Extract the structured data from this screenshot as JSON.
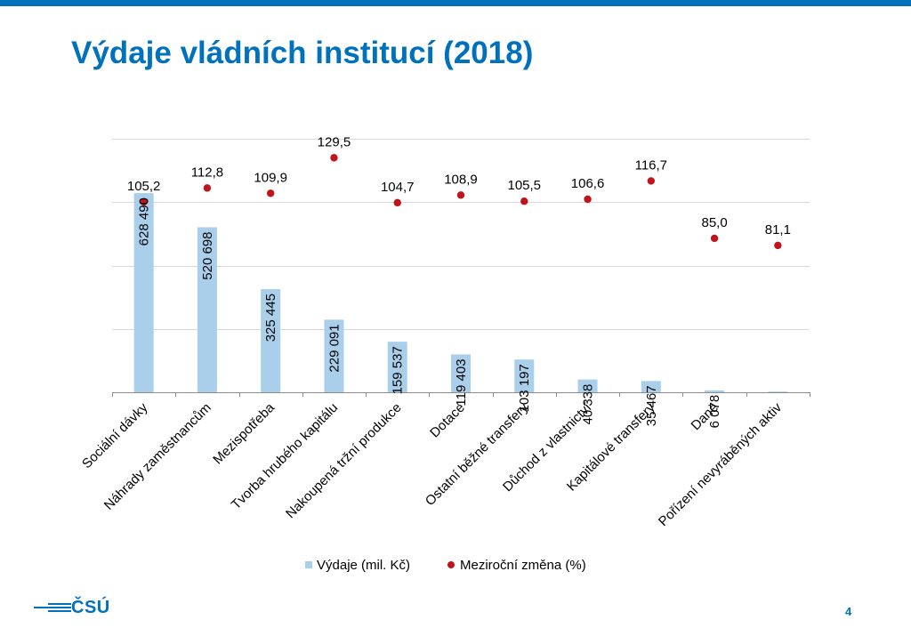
{
  "page": {
    "number": "4"
  },
  "logo": {
    "text": "ČSÚ"
  },
  "colors": {
    "accent": "#0071bc",
    "bar": "#a9cfeb",
    "point": "#c0141a",
    "grid": "#d9d9d9"
  },
  "chart_data": {
    "type": "bar",
    "title": "Výdaje vládních institucí (2018)",
    "categories": [
      "Sociální dávky",
      "Náhrady zaměstnancům",
      "Mezispotřeba",
      "Tvorba hrubého kapitálu",
      "Nakoupená tržní produkce",
      "Dotace",
      "Ostatní běžné transfery",
      "Důchod z vlastnictví",
      "Kapitálové transfery",
      "Daně",
      "Pořízení nevyráběných aktiv"
    ],
    "series": [
      {
        "name": "Výdaje (mil. Kč)",
        "type": "bar",
        "axis": "left",
        "values": [
          628490,
          520698,
          325445,
          229091,
          159537,
          119403,
          103197,
          40338,
          35467,
          6078,
          0
        ],
        "labels": [
          "628 490",
          "520 698",
          "325 445",
          "229 091",
          "159 537",
          "119 403",
          "103 197",
          "40 338",
          "35 467",
          "6 078",
          ""
        ]
      },
      {
        "name": "Meziroční změna (%)",
        "type": "scatter",
        "axis": "right",
        "values": [
          105.2,
          112.8,
          109.9,
          129.5,
          104.7,
          108.9,
          105.5,
          106.6,
          116.7,
          85.0,
          81.1
        ],
        "labels": [
          "105,2",
          "112,8",
          "109,9",
          "129,5",
          "104,7",
          "108,9",
          "105,5",
          "106,6",
          "116,7",
          "85,0",
          "81,1"
        ]
      }
    ],
    "ylim_left": [
      0,
      800000
    ],
    "ylim_right": [
      0,
      140
    ],
    "grid": true,
    "legend": "bottom"
  }
}
